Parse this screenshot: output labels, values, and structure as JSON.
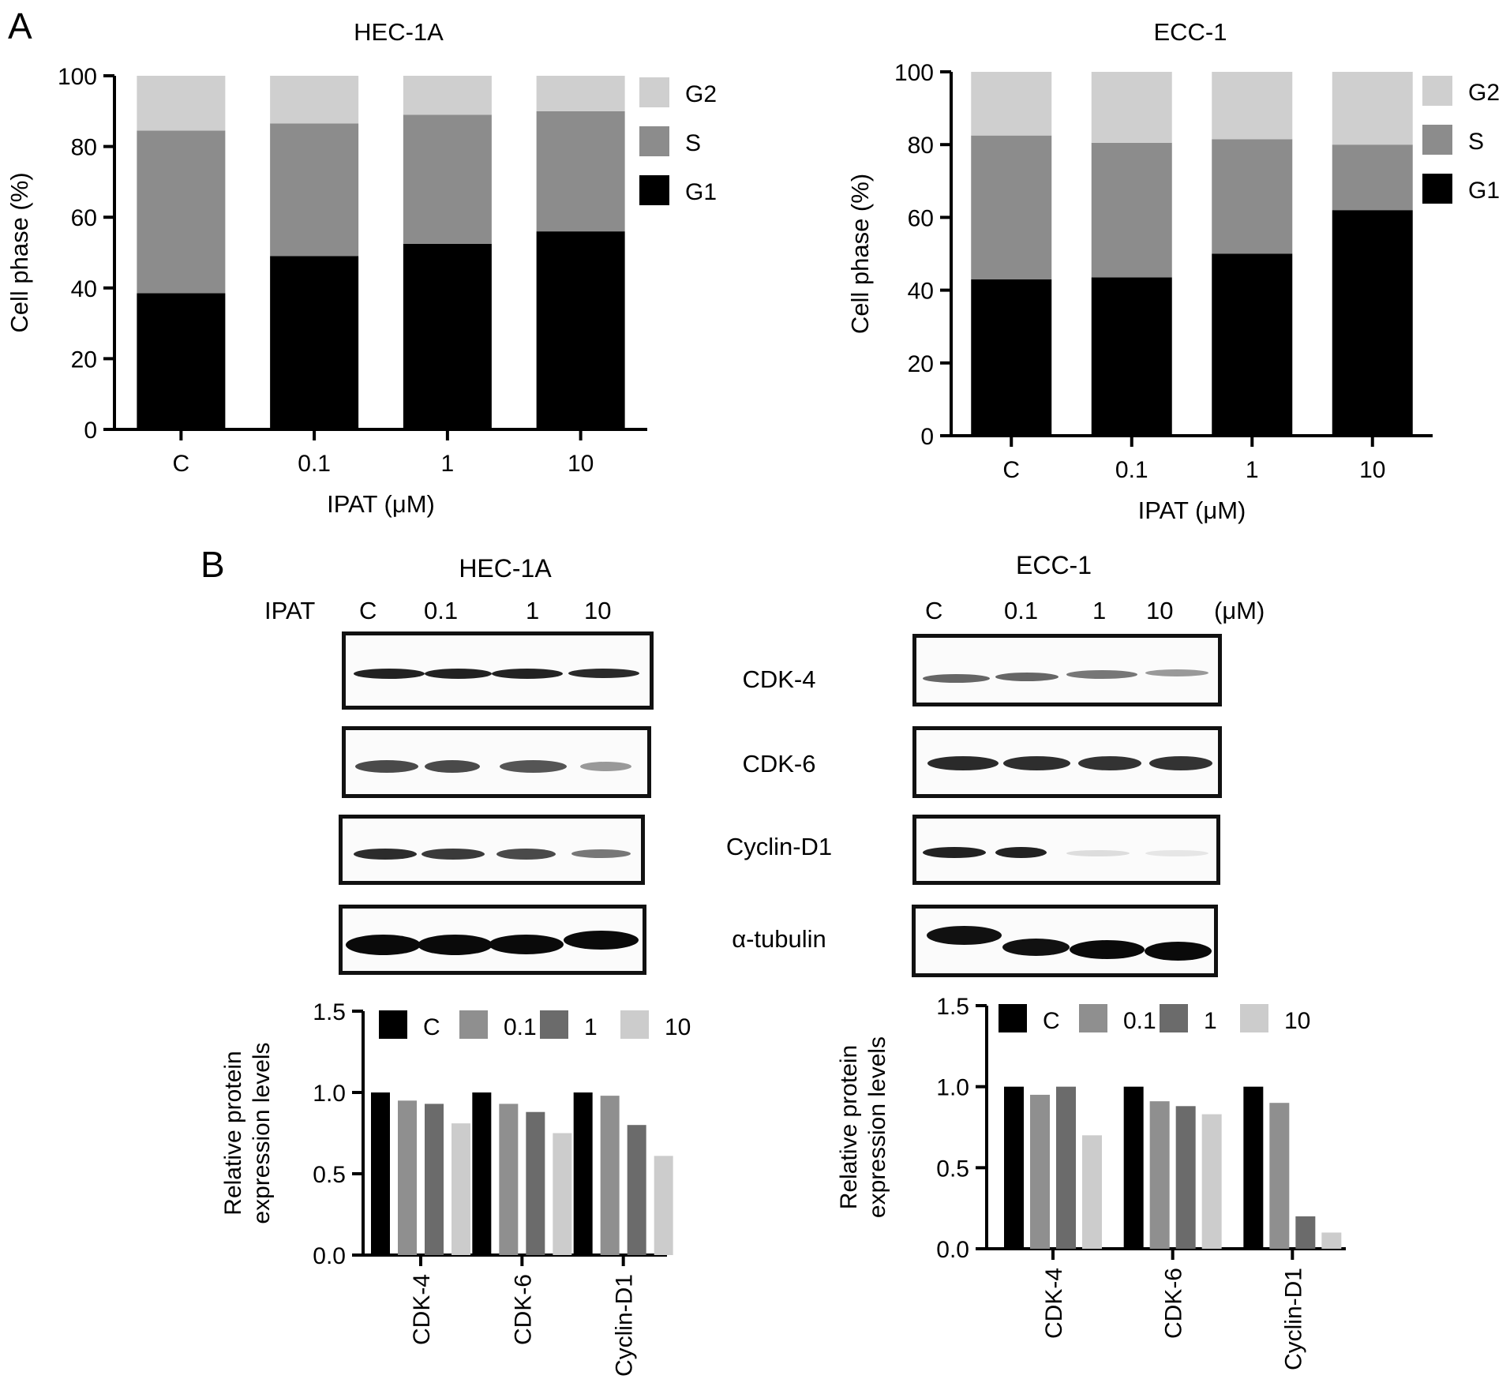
{
  "panels": {
    "A": "A",
    "B": "B"
  },
  "blots": {
    "left": {
      "title": "HEC-1A",
      "treatment_label": "IPAT",
      "lanes": [
        "C",
        "0.1",
        "1",
        "10"
      ]
    },
    "right": {
      "title": "ECC-1",
      "lanes": [
        "C",
        "0.1",
        "1",
        "10"
      ],
      "unit": "(μM)"
    },
    "proteins": [
      "CDK-4",
      "CDK-6",
      "Cyclin-D1",
      "α-tubulin"
    ]
  },
  "colors": {
    "G1": "#000000",
    "S": "#8c8c8c",
    "G2": "#cfcfcf",
    "C": "#000000",
    "0.1": "#8f8f8f",
    "1": "#6b6b6b",
    "10": "#cccccc"
  },
  "chart_data": [
    {
      "type": "bar",
      "stacked": true,
      "title": "HEC-1A",
      "xlabel": "IPAT (μM)",
      "ylabel": "Cell phase (%)",
      "ylim": [
        0,
        100
      ],
      "yticks": [
        0,
        20,
        40,
        60,
        80,
        100
      ],
      "categories": [
        "C",
        "0.1",
        "1",
        "10"
      ],
      "series": [
        {
          "name": "G1",
          "values": [
            38.5,
            49,
            52.5,
            56
          ]
        },
        {
          "name": "S",
          "values": [
            46,
            37.5,
            36.5,
            34
          ]
        },
        {
          "name": "G2",
          "values": [
            15.5,
            13.5,
            11,
            10
          ]
        }
      ],
      "legend_order": [
        "G2",
        "S",
        "G1"
      ],
      "legend": "right"
    },
    {
      "type": "bar",
      "stacked": true,
      "title": "ECC-1",
      "xlabel": "IPAT (μM)",
      "ylabel": "Cell phase (%)",
      "ylim": [
        0,
        100
      ],
      "yticks": [
        0,
        20,
        40,
        60,
        80,
        100
      ],
      "categories": [
        "C",
        "0.1",
        "1",
        "10"
      ],
      "series": [
        {
          "name": "G1",
          "values": [
            43,
            43.5,
            50,
            62
          ]
        },
        {
          "name": "S",
          "values": [
            39.5,
            37,
            31.5,
            18
          ]
        },
        {
          "name": "G2",
          "values": [
            17.5,
            19.5,
            18.5,
            20
          ]
        }
      ],
      "legend_order": [
        "G2",
        "S",
        "G1"
      ],
      "legend": "right"
    },
    {
      "type": "bar",
      "title": "",
      "xlabel": "",
      "ylabel": "Relative protein expression levels",
      "ylim": [
        0,
        1.5
      ],
      "yticks": [
        "0.0",
        "0.5",
        "1.0",
        "1.5"
      ],
      "categories": [
        "CDK-4",
        "CDK-6",
        "Cyclin-D1"
      ],
      "series": [
        {
          "name": "C",
          "values": [
            1.0,
            1.0,
            1.0
          ]
        },
        {
          "name": "0.1",
          "values": [
            0.95,
            0.93,
            0.98
          ]
        },
        {
          "name": "1",
          "values": [
            0.93,
            0.88,
            0.8
          ]
        },
        {
          "name": "10",
          "values": [
            0.81,
            0.75,
            0.61
          ]
        }
      ],
      "legend": "top"
    },
    {
      "type": "bar",
      "title": "",
      "xlabel": "",
      "ylabel": "Relative protein expression levels",
      "ylim": [
        0,
        1.5
      ],
      "yticks": [
        "0.0",
        "0.5",
        "1.0",
        "1.5"
      ],
      "categories": [
        "CDK-4",
        "CDK-6",
        "Cyclin-D1"
      ],
      "series": [
        {
          "name": "C",
          "values": [
            1.0,
            1.0,
            1.0
          ]
        },
        {
          "name": "0.1",
          "values": [
            0.95,
            0.91,
            0.9
          ]
        },
        {
          "name": "1",
          "values": [
            1.0,
            0.88,
            0.2
          ]
        },
        {
          "name": "10",
          "values": [
            0.7,
            0.83,
            0.1
          ]
        }
      ],
      "legend": "top"
    }
  ]
}
